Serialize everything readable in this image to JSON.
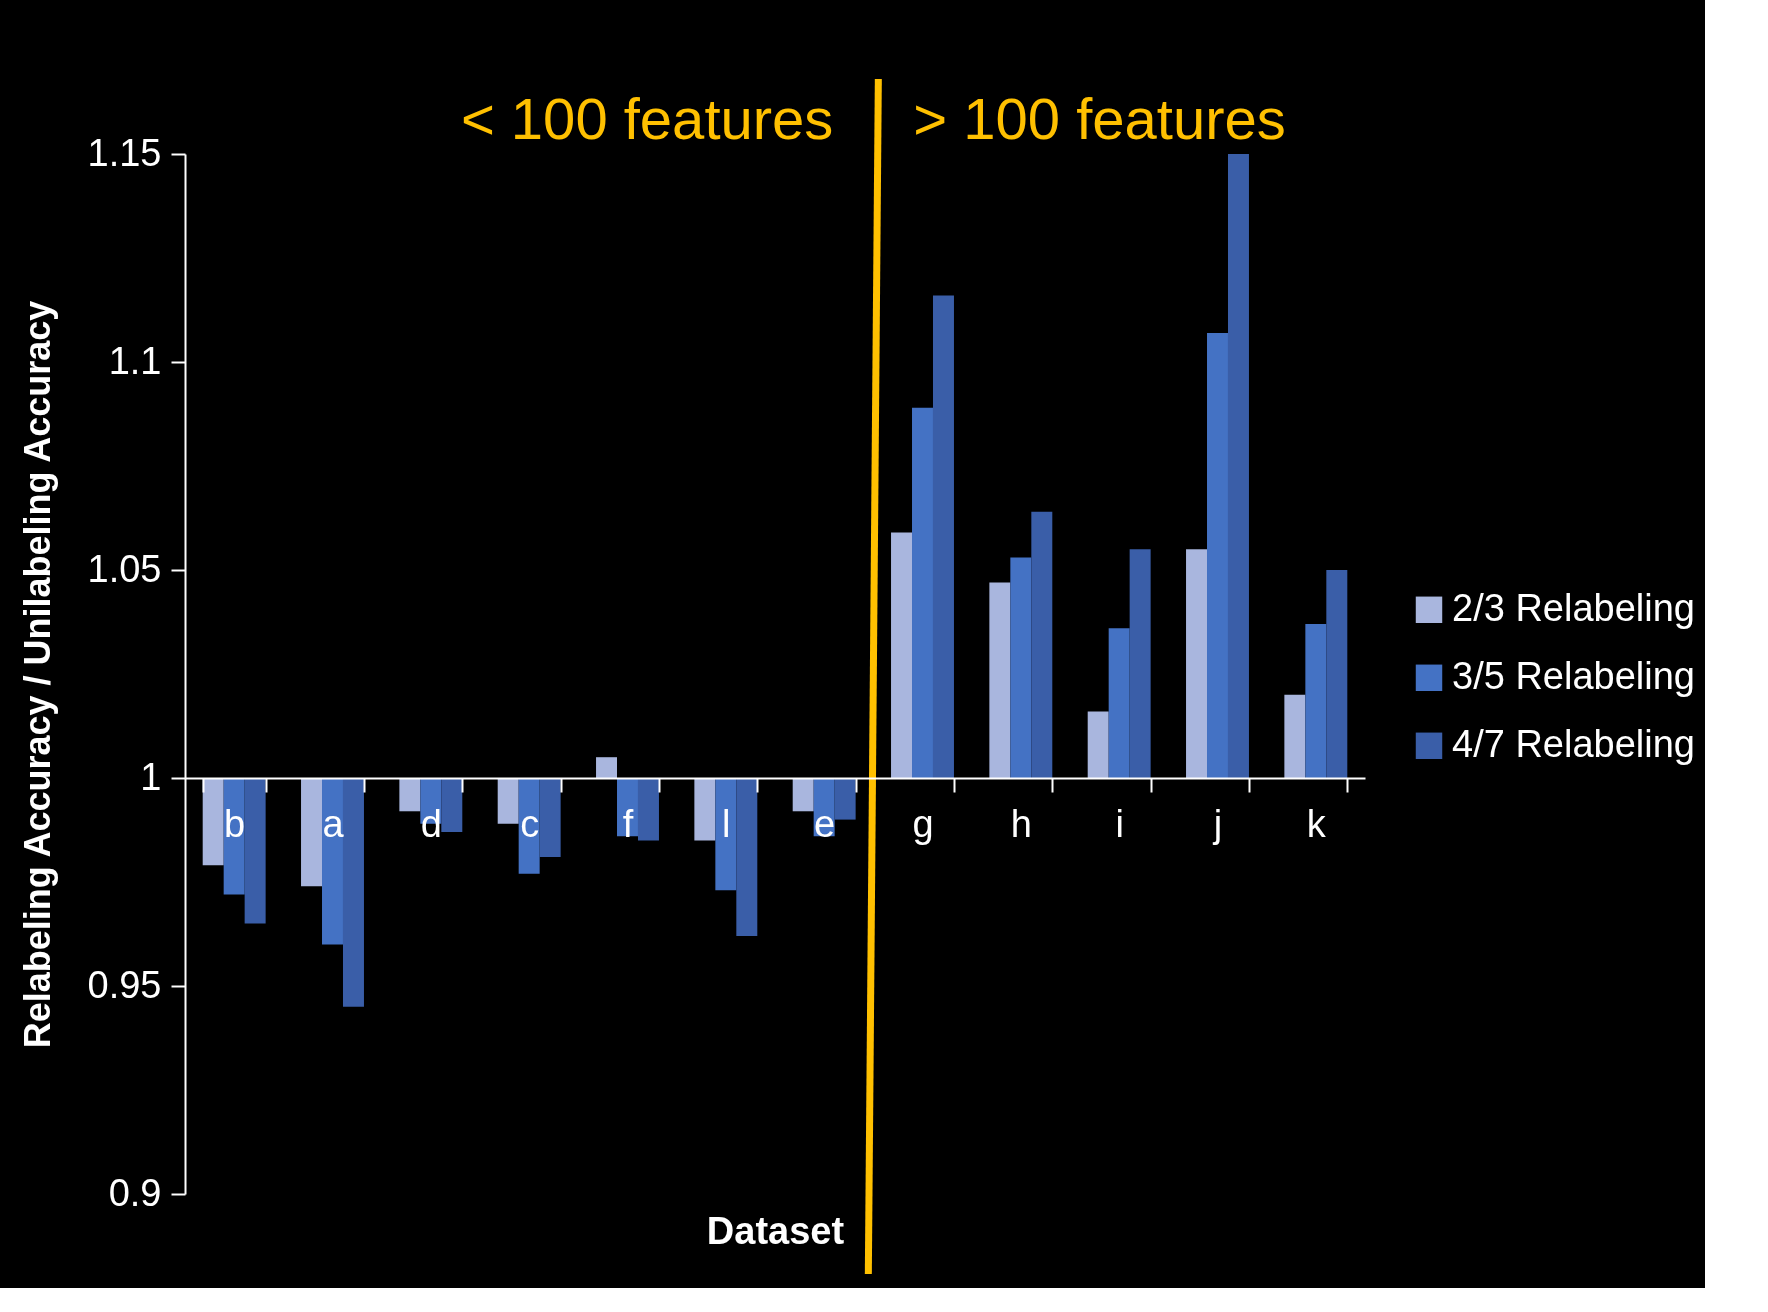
{
  "chart_data": {
    "type": "bar",
    "xlabel": "Dataset",
    "ylabel": "Relabeling Accuracy / Unilabeling Accuracy",
    "categories": [
      "b",
      "a",
      "d",
      "c",
      "f",
      "l",
      "e",
      "g",
      "h",
      "i",
      "j",
      "k"
    ],
    "series": [
      {
        "name": "2/3 Relabeling",
        "color": "#a9b6de",
        "base": [
          1,
          1,
          1,
          1,
          1,
          1,
          1,
          1,
          1,
          1,
          1,
          1
        ],
        "values": [
          -0.021,
          -0.026,
          -0.008,
          -0.011,
          0.005,
          -0.015,
          -0.008,
          0.059,
          0.047,
          0.016,
          0.055,
          0.02
        ]
      },
      {
        "name": "3/5 Relabeling",
        "color": "#4472c4",
        "base": [
          1,
          1,
          1,
          1,
          1,
          1,
          1,
          1,
          1,
          1,
          1,
          1
        ],
        "values": [
          -0.028,
          -0.04,
          -0.011,
          -0.023,
          -0.014,
          -0.027,
          -0.014,
          0.089,
          0.053,
          0.036,
          0.107,
          0.037
        ]
      },
      {
        "name": "4/7 Relabeling",
        "color": "#3a5ea8",
        "base": [
          1,
          1,
          1,
          1,
          1,
          1,
          1,
          1,
          1,
          1,
          1,
          1
        ],
        "values": [
          -0.035,
          -0.055,
          -0.013,
          -0.019,
          -0.015,
          -0.038,
          -0.01,
          0.116,
          0.064,
          0.055,
          0.15,
          0.05
        ]
      }
    ],
    "ylim": [
      0.9,
      1.15
    ],
    "yticks": [
      0.9,
      0.95,
      1,
      1.05,
      1.1,
      1.15
    ],
    "annotations": [
      "< 100 features",
      "> 100 features"
    ],
    "legend": "right",
    "grid": false
  }
}
